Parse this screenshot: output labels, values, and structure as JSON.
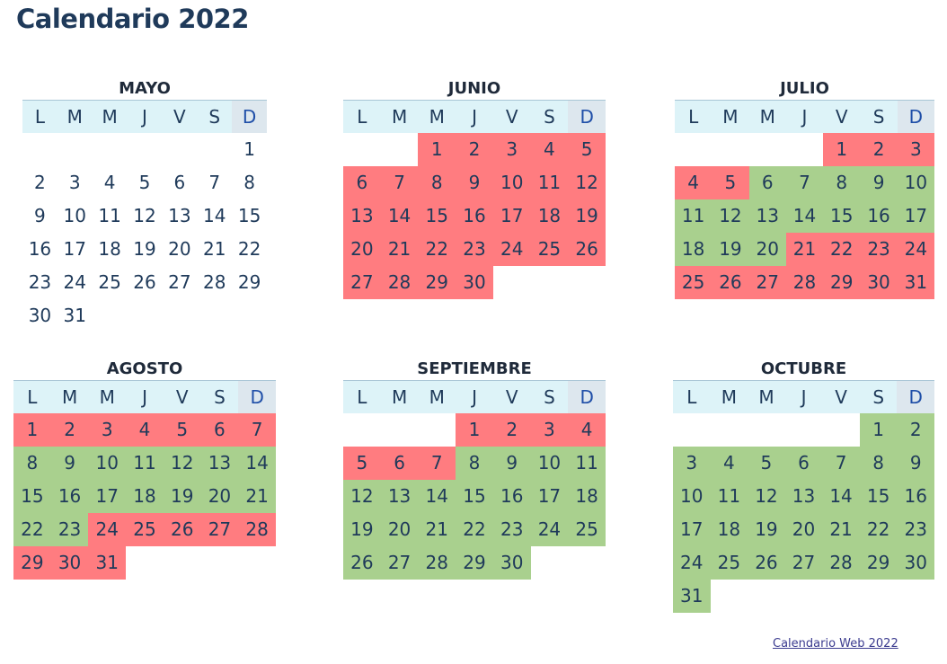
{
  "title": "Calendario 2022",
  "weekdays": [
    "L",
    "M",
    "M",
    "J",
    "V",
    "S",
    "D"
  ],
  "colors": {
    "red": "#ff7c80",
    "green": "#a9d08e",
    "header": "#ddf3f8",
    "sunday_header": "#dde7ee"
  },
  "months": [
    {
      "name": "MAYO",
      "start_offset": 6,
      "days": 31,
      "highlights": []
    },
    {
      "name": "JUNIO",
      "start_offset": 2,
      "days": 30,
      "highlights": [
        {
          "from": 1,
          "to": 30,
          "color": "red"
        }
      ]
    },
    {
      "name": "JULIO",
      "start_offset": 4,
      "days": 31,
      "highlights": [
        {
          "from": 1,
          "to": 5,
          "color": "red"
        },
        {
          "from": 6,
          "to": 20,
          "color": "green"
        },
        {
          "from": 21,
          "to": 31,
          "color": "red"
        }
      ]
    },
    {
      "name": "AGOSTO",
      "start_offset": 0,
      "days": 31,
      "highlights": [
        {
          "from": 1,
          "to": 7,
          "color": "red"
        },
        {
          "from": 8,
          "to": 23,
          "color": "green"
        },
        {
          "from": 24,
          "to": 31,
          "color": "red"
        }
      ]
    },
    {
      "name": "SEPTIEMBRE",
      "start_offset": 3,
      "days": 30,
      "highlights": [
        {
          "from": 1,
          "to": 7,
          "color": "red"
        },
        {
          "from": 8,
          "to": 30,
          "color": "green"
        }
      ]
    },
    {
      "name": "OCTUBRE",
      "start_offset": 5,
      "days": 31,
      "highlights": [
        {
          "from": 1,
          "to": 31,
          "color": "green"
        }
      ]
    }
  ],
  "footer_link": "Calendario Web 2022"
}
